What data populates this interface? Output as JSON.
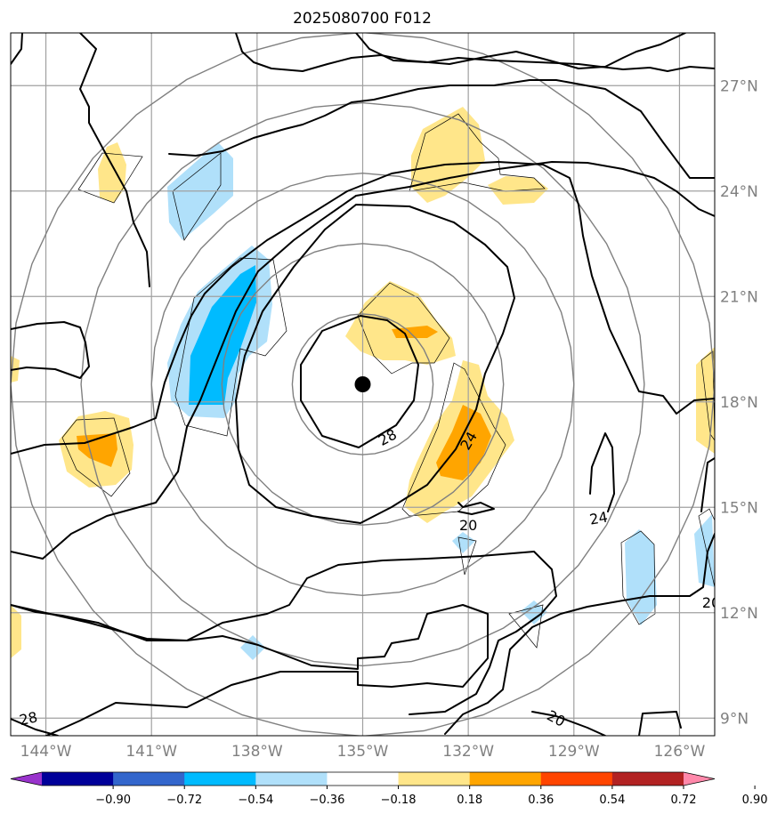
{
  "map": {
    "title": "2025080700 F012",
    "extent": {
      "lon_min": -145.0,
      "lon_max": -125.0,
      "lat_min": 8.5,
      "lat_max": 28.5
    },
    "center": {
      "lon": -135.0,
      "lat": 18.5
    },
    "lon_ticks": [
      {
        "lon": -144,
        "label": "144°W"
      },
      {
        "lon": -141,
        "label": "141°W"
      },
      {
        "lon": -138,
        "label": "138°W"
      },
      {
        "lon": -135,
        "label": "135°W"
      },
      {
        "lon": -132,
        "label": "132°W"
      },
      {
        "lon": -129,
        "label": "129°W"
      },
      {
        "lon": -126,
        "label": "126°W"
      }
    ],
    "lat_ticks": [
      {
        "lat": 27,
        "label": "27°N"
      },
      {
        "lat": 24,
        "label": "24°N"
      },
      {
        "lat": 21,
        "label": "21°N"
      },
      {
        "lat": 18,
        "label": "18°N"
      },
      {
        "lat": 15,
        "label": "15°N"
      },
      {
        "lat": 12,
        "label": "12°N"
      },
      {
        "lat": 9,
        "label": "9°N"
      }
    ],
    "range_ring_radii_deg": [
      2,
      4,
      6,
      8,
      10
    ],
    "contour_labels": [
      {
        "text": "28",
        "lon": -134.3,
        "lat": 17.0,
        "rot": -28
      },
      {
        "text": "24",
        "lon": -132.0,
        "lat": 16.9,
        "rot": -60
      },
      {
        "text": "20",
        "lon": -132.0,
        "lat": 14.5,
        "rot": 0
      },
      {
        "text": "24",
        "lon": -128.3,
        "lat": 14.7,
        "rot": -10
      },
      {
        "text": "20",
        "lon": -125.1,
        "lat": 12.3,
        "rot": 0
      },
      {
        "text": "28",
        "lon": -144.5,
        "lat": 9.0,
        "rot": -12
      },
      {
        "text": "20",
        "lon": -129.5,
        "lat": 9.0,
        "rot": 28
      }
    ]
  },
  "colorbar": {
    "colors": [
      "#9933cc",
      "#000099",
      "#3366cc",
      "#00bbff",
      "#b0e0fa",
      "#ffffff",
      "#ffe68a",
      "#ffa500",
      "#ff4500",
      "#b22222",
      "#ff88aa"
    ],
    "tick_labels": [
      "−0.90",
      "−0.72",
      "−0.54",
      "−0.36",
      "−0.18",
      "0.18",
      "0.36",
      "0.54",
      "0.72",
      "0.90"
    ]
  }
}
